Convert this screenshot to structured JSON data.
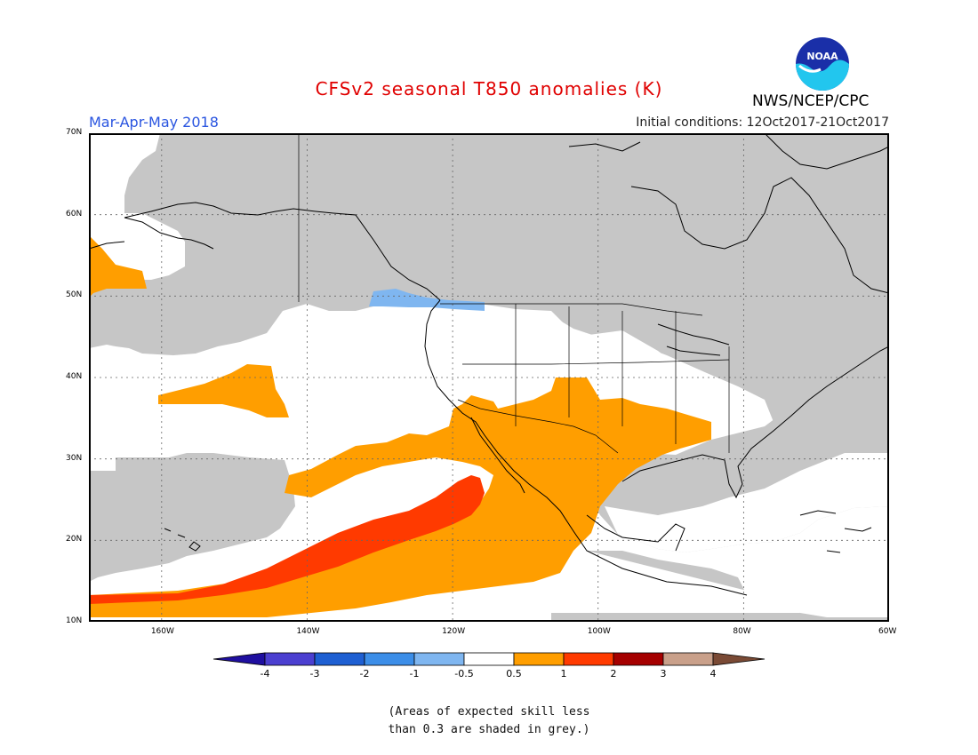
{
  "title": "CFSv2 seasonal T850 anomalies (K)",
  "season": "Mar-Apr-May 2018",
  "initial_conditions": "Initial conditions: 12Oct2017-21Oct2017",
  "agency": "NWS/NCEP/CPC",
  "logo_text": "NOAA",
  "note_lines": [
    "(Areas of expected skill less",
    "than 0.3 are shaded in grey.)"
  ],
  "lat_labels": [
    "70N",
    "60N",
    "50N",
    "40N",
    "30N",
    "20N",
    "10N"
  ],
  "lon_labels": [
    "160W",
    "140W",
    "120W",
    "100W",
    "80W",
    "60W"
  ],
  "colorbar": {
    "labels": [
      "-4",
      "-3",
      "-2",
      "-1",
      "-0.5",
      "0.5",
      "1",
      "2",
      "3",
      "4"
    ],
    "colors": [
      "#1f0fa0",
      "#4b3fd0",
      "#1e5fd2",
      "#3c8ee8",
      "#7fb6f0",
      "#ffffff",
      "#ff9e00",
      "#ff3a00",
      "#a50000",
      "#c9a08a",
      "#7a4a35"
    ],
    "skill_grey": "#c6c6c6"
  },
  "map": {
    "extent": {
      "lon_min": -170,
      "lon_max": -60,
      "lat_min": 10,
      "lat_max": 70
    },
    "grid_lons": [
      -160,
      -140,
      -120,
      -100,
      -80
    ],
    "grid_lats": [
      20,
      30,
      40,
      50,
      60
    ]
  }
}
